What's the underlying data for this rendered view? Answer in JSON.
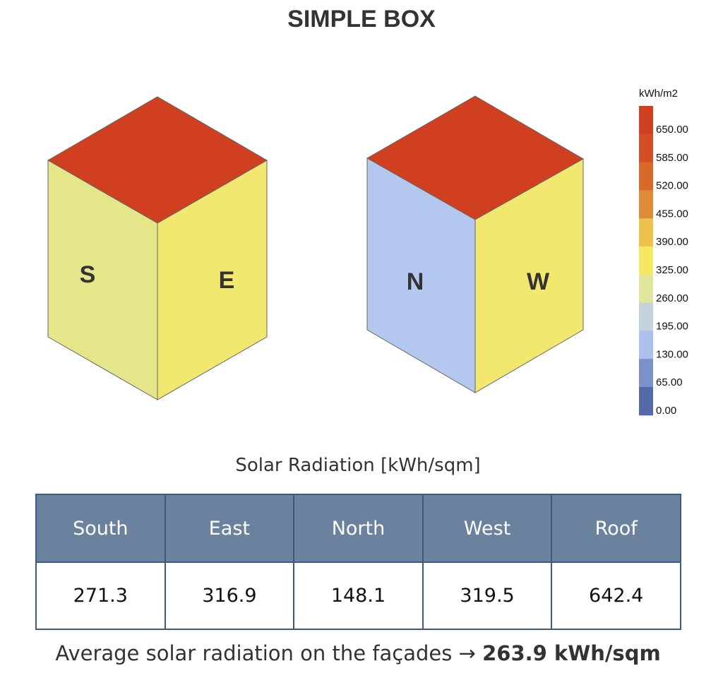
{
  "header": {
    "title": "SIMPLE BOX"
  },
  "boxes": [
    {
      "left_face": "S",
      "right_face": "E"
    },
    {
      "left_face": "N",
      "right_face": "W"
    }
  ],
  "legend": {
    "unit": "kWh/m2",
    "labels": [
      "650.00",
      "585.00",
      "520.00",
      "455.00",
      "390.00",
      "325.00",
      "260.00",
      "195.00",
      "130.00",
      "65.00",
      "0.00"
    ],
    "colors": [
      "#cf3f20",
      "#d34e25",
      "#d8692b",
      "#dc8c37",
      "#ecc24b",
      "#f5e862",
      "#e2e69b",
      "#c4d2dc",
      "#adbfec",
      "#7a92c8",
      "#5369a8"
    ]
  },
  "table": {
    "caption": "Solar Radiation [kWh/sqm]",
    "headers": [
      "South",
      "East",
      "North",
      "West",
      "Roof"
    ],
    "rows": [
      [
        "271.3",
        "316.9",
        "148.1",
        "319.5",
        "642.4"
      ]
    ]
  },
  "footer": {
    "text": "Average solar radiation on the façades →",
    "value": "263.9 kWh/sqm"
  }
}
